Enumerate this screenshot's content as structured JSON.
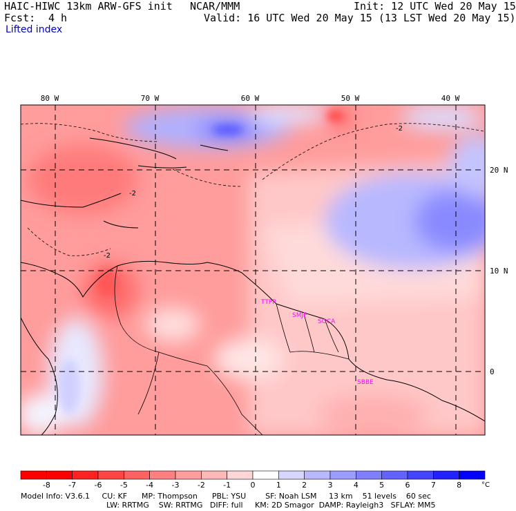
{
  "header": {
    "model": "HAIC-HIWC 13km ARW-GFS init",
    "org": "NCAR/MMM",
    "init": "Init: 12 UTC Wed 20 May 15",
    "fcst_label": "Fcst:",
    "fcst_value": "4 h",
    "valid": "Valid: 16 UTC Wed 20 May 15 (13 LST Wed 20 May 15)",
    "field": "Lifted index"
  },
  "map": {
    "lon_labels": [
      "80 W",
      "70 W",
      "60 W",
      "50 W",
      "40 W"
    ],
    "lat_labels": [
      "20 N",
      "10 N",
      "0"
    ],
    "lon_ticks_deg": [
      -80,
      -70,
      -60,
      -50,
      -40
    ],
    "lat_ticks_deg": [
      20,
      10,
      0
    ],
    "contour_label": "-2",
    "stations": [
      "TTPP",
      "SMJP",
      "SOCA",
      "SBBE"
    ],
    "station_color": "#ff00ff"
  },
  "colorbar": {
    "tick_labels": [
      "-8",
      "-7",
      "-6",
      "-5",
      "-4",
      "-3",
      "-2",
      "-1",
      "0",
      "1",
      "2",
      "3",
      "4",
      "5",
      "6",
      "7",
      "8"
    ],
    "unit": "°C",
    "colors": [
      "#ff0000",
      "#ff2222",
      "#ff4444",
      "#ff6262",
      "#ff8080",
      "#ff9c9c",
      "#ffb8b8",
      "#ffd6d6",
      "#ffffff",
      "#d6d6ff",
      "#b8b8ff",
      "#9c9cff",
      "#8080ff",
      "#6262ff",
      "#4444ff",
      "#2222ff",
      "#0000ff"
    ]
  },
  "footer": {
    "line1": "Model Info: V3.6.1     CU: KF      MP: Thompson      PBL: YSU        SF: Noah LSM     13 km    51 levels    60 sec",
    "line2": "LW: RRTMG    SW: RRTMG   DIFF: full     KM: 2D Smagor  DAMP: Rayleigh3   SFLAY: MM5"
  }
}
